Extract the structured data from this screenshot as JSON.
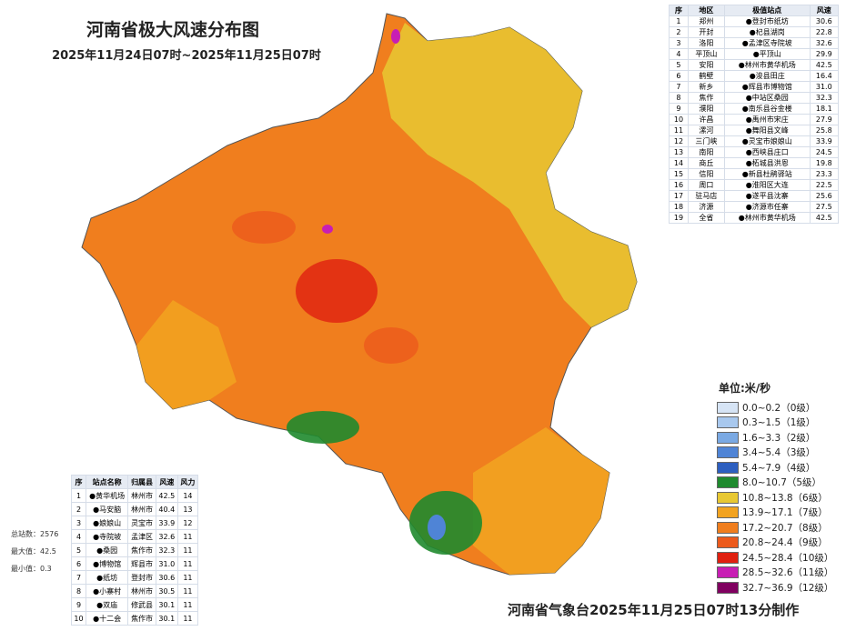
{
  "header": {
    "title": "河南省极大风速分布图",
    "subtitle": "2025年11月24日07时~2025年11月25日07时"
  },
  "region_table": {
    "headers": [
      "序",
      "地区",
      "极值站点",
      "风速"
    ],
    "rows": [
      [
        "1",
        "郑州",
        "●登封市纸坊",
        "30.6"
      ],
      [
        "2",
        "开封",
        "●杞县湖岗",
        "22.8"
      ],
      [
        "3",
        "洛阳",
        "●孟津区寺院坡",
        "32.6"
      ],
      [
        "4",
        "平顶山",
        "●平顶山",
        "29.9"
      ],
      [
        "5",
        "安阳",
        "●林州市黄华机场",
        "42.5"
      ],
      [
        "6",
        "鹤壁",
        "●浚县田庄",
        "16.4"
      ],
      [
        "7",
        "新乡",
        "●辉县市博物馆",
        "31.0"
      ],
      [
        "8",
        "焦作",
        "●中站区桑园",
        "32.3"
      ],
      [
        "9",
        "濮阳",
        "●南乐县谷金楼",
        "18.1"
      ],
      [
        "10",
        "许昌",
        "●禹州市宋庄",
        "27.9"
      ],
      [
        "11",
        "漯河",
        "●舞阳县文峰",
        "25.8"
      ],
      [
        "12",
        "三门峡",
        "●灵宝市娘娘山",
        "33.9"
      ],
      [
        "13",
        "南阳",
        "●西峡县庄口",
        "24.5"
      ],
      [
        "14",
        "商丘",
        "●柘城县洪恩",
        "19.8"
      ],
      [
        "15",
        "信阳",
        "●新县杜鹃驿站",
        "23.3"
      ],
      [
        "16",
        "周口",
        "●淮阳区大连",
        "22.5"
      ],
      [
        "17",
        "驻马店",
        "●遂平县沈寨",
        "25.6"
      ],
      [
        "18",
        "济源",
        "●济源市任寨",
        "27.5"
      ],
      [
        "19",
        "全省",
        "●林州市黄华机场",
        "42.5"
      ]
    ]
  },
  "station_table": {
    "headers": [
      "序",
      "站点名称",
      "归属县",
      "风速",
      "风力"
    ],
    "rows": [
      [
        "1",
        "●黄华机场",
        "林州市",
        "42.5",
        "14"
      ],
      [
        "2",
        "●马安脑",
        "林州市",
        "40.4",
        "13"
      ],
      [
        "3",
        "●娘娘山",
        "灵宝市",
        "33.9",
        "12"
      ],
      [
        "4",
        "●寺院坡",
        "孟津区",
        "32.6",
        "11"
      ],
      [
        "5",
        "●桑园",
        "焦作市",
        "32.3",
        "11"
      ],
      [
        "6",
        "●博物馆",
        "辉县市",
        "31.0",
        "11"
      ],
      [
        "7",
        "●纸坊",
        "登封市",
        "30.6",
        "11"
      ],
      [
        "8",
        "●小寨村",
        "林州市",
        "30.5",
        "11"
      ],
      [
        "9",
        "●双庙",
        "修武县",
        "30.1",
        "11"
      ],
      [
        "10",
        "●十二会",
        "焦作市",
        "30.1",
        "11"
      ]
    ]
  },
  "stats": [
    "总站数：2576",
    "最大值：42.5",
    "最小值：0.3"
  ],
  "legend": {
    "unit": "单位:米/秒",
    "items": [
      {
        "label": "0.0~0.2（0级）",
        "color": "#d6e4f5"
      },
      {
        "label": "0.3~1.5（1级）",
        "color": "#a8c8ee"
      },
      {
        "label": "1.6~3.3（2级）",
        "color": "#7aa9e3"
      },
      {
        "label": "3.4~5.4（3级）",
        "color": "#4f84d6"
      },
      {
        "label": "5.4~7.9（4级）",
        "color": "#2d5fc0"
      },
      {
        "label": "8.0~10.7（5级）",
        "color": "#1f8a2e"
      },
      {
        "label": "10.8~13.8（6级）",
        "color": "#e8c832"
      },
      {
        "label": "13.9~17.1（7级）",
        "color": "#f2a320"
      },
      {
        "label": "17.2~20.7（8级）",
        "color": "#f07e1e"
      },
      {
        "label": "20.8~24.4（9级）",
        "color": "#ec5a1c"
      },
      {
        "label": "24.5~28.4（10级）",
        "color": "#e02010"
      },
      {
        "label": "28.5~32.6（11级）",
        "color": "#c81eb4"
      },
      {
        "label": "32.7~36.9（12级）",
        "color": "#800060"
      }
    ]
  },
  "footer": "河南省气象台2025年11月25日07时13分制作"
}
